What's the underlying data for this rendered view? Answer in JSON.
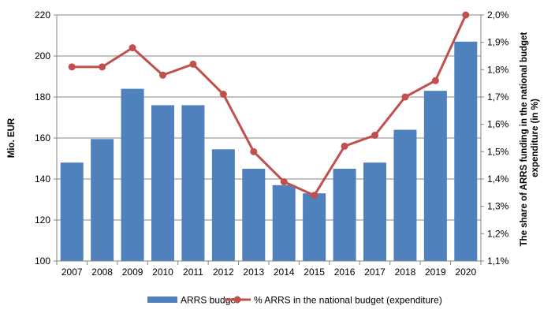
{
  "chart_data": {
    "type": "bar+line",
    "categories": [
      "2007",
      "2008",
      "2009",
      "2010",
      "2011",
      "2012",
      "2013",
      "2014",
      "2015",
      "2016",
      "2017",
      "2018",
      "2019",
      "2020"
    ],
    "series": [
      {
        "name": "ARRS budget",
        "type": "bar",
        "axis": "left",
        "color": "#4F81BD",
        "values": [
          148,
          159.5,
          184,
          176,
          176,
          154.5,
          145,
          137,
          133,
          145,
          148,
          164,
          183,
          207
        ]
      },
      {
        "name": "% ARRS in the national budget (expenditure)",
        "type": "line",
        "axis": "right",
        "color": "#C0504D",
        "values": [
          1.81,
          1.81,
          1.88,
          1.78,
          1.82,
          1.71,
          1.5,
          1.39,
          1.34,
          1.52,
          1.56,
          1.7,
          1.76,
          2.0
        ]
      }
    ],
    "ylabel_left": "Mio. EUR",
    "ylabel_right": "The share of ARRS funding in the national budget expenditure (in %)",
    "ylabel_right_lines": [
      "The share of ARRS funding in the national budget",
      "expenditure (in %)"
    ],
    "ylim_left": [
      100,
      220
    ],
    "ylim_right": [
      1.1,
      2.0
    ],
    "yticks_left": [
      "100",
      "120",
      "140",
      "160",
      "180",
      "200",
      "220"
    ],
    "yticks_right": [
      "1,1%",
      "1,2%",
      "1,3%",
      "1,4%",
      "1,5%",
      "1,6%",
      "1,7%",
      "1,8%",
      "1,9%",
      "2,0%"
    ],
    "grid": true,
    "legend_position": "bottom",
    "legend": [
      "ARRS budget",
      "% ARRS in the national budget (expenditure)"
    ]
  }
}
